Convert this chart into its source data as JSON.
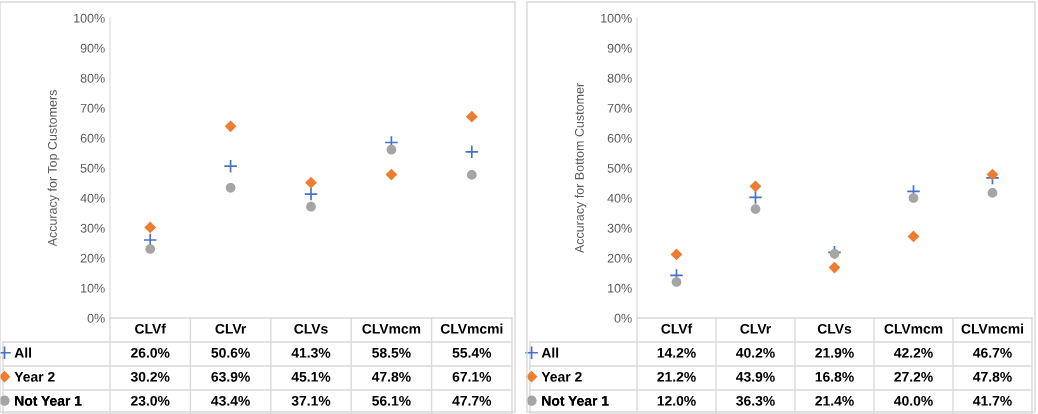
{
  "chart_data": [
    {
      "type": "scatter",
      "legend": "bottom left",
      "ylabel": "Accuracy for Top Customers",
      "categories": [
        "CLVf",
        "CLVr",
        "CLVs",
        "CLVmcm",
        "CLVmcmi"
      ],
      "ylim": [
        0,
        100
      ],
      "yticks": [
        {
          "value": 0,
          "label": "0%"
        },
        {
          "value": 10,
          "label": "10%"
        },
        {
          "value": 20,
          "label": "20%"
        },
        {
          "value": 30,
          "label": "30%"
        },
        {
          "value": 40,
          "label": "40%"
        },
        {
          "value": 50,
          "label": "50%"
        },
        {
          "value": 60,
          "label": "60%"
        },
        {
          "value": 70,
          "label": "70%"
        },
        {
          "value": 80,
          "label": "80%"
        },
        {
          "value": 90,
          "label": "90%"
        },
        {
          "value": 100,
          "label": "100%"
        }
      ],
      "series": [
        {
          "name": "All",
          "color": "#4472c4",
          "marker": "cross",
          "values": [
            26.0,
            50.6,
            41.3,
            58.5,
            55.4
          ],
          "value_labels": [
            "26.0%",
            "50.6%",
            "41.3%",
            "58.5%",
            "55.4%"
          ]
        },
        {
          "name": "Year 2",
          "color": "#ed7d31",
          "marker": "diamond",
          "values": [
            30.2,
            63.9,
            45.1,
            47.8,
            67.1
          ],
          "value_labels": [
            "30.2%",
            "63.9%",
            "45.1%",
            "47.8%",
            "67.1%"
          ]
        },
        {
          "name": "Not Year 1",
          "color": "#a5a5a5",
          "marker": "circle",
          "values": [
            23.0,
            43.4,
            37.1,
            56.1,
            47.7
          ],
          "value_labels": [
            "23.0%",
            "43.4%",
            "37.1%",
            "56.1%",
            "47.7%"
          ]
        }
      ]
    },
    {
      "type": "scatter",
      "legend": "bottom left",
      "ylabel": "Accuracy for Bottom Customer",
      "categories": [
        "CLVf",
        "CLVr",
        "CLVs",
        "CLVmcm",
        "CLVmcmi"
      ],
      "ylim": [
        0,
        100
      ],
      "yticks": [
        {
          "value": 0,
          "label": "0%"
        },
        {
          "value": 10,
          "label": "10%"
        },
        {
          "value": 20,
          "label": "20%"
        },
        {
          "value": 30,
          "label": "30%"
        },
        {
          "value": 40,
          "label": "40%"
        },
        {
          "value": 50,
          "label": "50%"
        },
        {
          "value": 60,
          "label": "60%"
        },
        {
          "value": 70,
          "label": "70%"
        },
        {
          "value": 80,
          "label": "80%"
        },
        {
          "value": 90,
          "label": "90%"
        },
        {
          "value": 100,
          "label": "100%"
        }
      ],
      "series": [
        {
          "name": "All",
          "color": "#4472c4",
          "marker": "cross",
          "values": [
            14.2,
            40.2,
            21.9,
            42.2,
            46.7
          ],
          "value_labels": [
            "14.2%",
            "40.2%",
            "21.9%",
            "42.2%",
            "46.7%"
          ]
        },
        {
          "name": "Year 2",
          "color": "#ed7d31",
          "marker": "diamond",
          "values": [
            21.2,
            43.9,
            16.8,
            27.2,
            47.8
          ],
          "value_labels": [
            "21.2%",
            "43.9%",
            "16.8%",
            "27.2%",
            "47.8%"
          ]
        },
        {
          "name": "Not Year 1",
          "color": "#a5a5a5",
          "marker": "circle",
          "values": [
            12.0,
            36.3,
            21.4,
            40.0,
            41.7
          ],
          "value_labels": [
            "12.0%",
            "36.3%",
            "21.4%",
            "40.0%",
            "41.7%"
          ]
        }
      ]
    }
  ]
}
